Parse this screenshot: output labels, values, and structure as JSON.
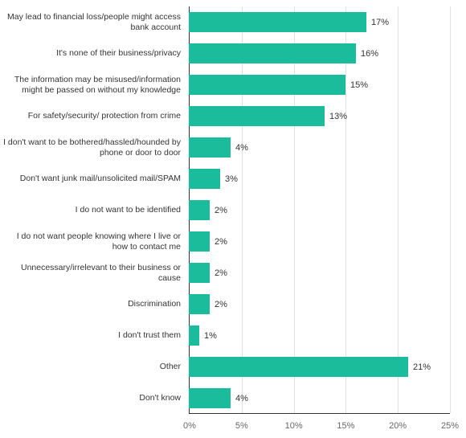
{
  "chart": {
    "type": "bar-horizontal",
    "xlim": [
      0,
      25
    ],
    "xtick_step": 5,
    "xtick_labels": [
      "0%",
      "5%",
      "10%",
      "15%",
      "20%",
      "25%"
    ],
    "bar_color": "#1abc9c",
    "axis_color": "#333333",
    "grid_color": "#e0e0e0",
    "label_color": "#333333",
    "tick_label_color": "#666666",
    "value_label_color": "#333333",
    "label_fontsize": 10.5,
    "value_fontsize": 11,
    "tick_fontsize": 11,
    "background_color": "#ffffff",
    "bar_height_ratio": 0.62,
    "items": [
      {
        "label": "May lead to financial loss/people might access bank account",
        "value": 17,
        "value_label": "17%"
      },
      {
        "label": "It's none of their business/privacy",
        "value": 16,
        "value_label": "16%"
      },
      {
        "label": "The information may be misused/information might be passed on without my knowledge",
        "value": 15,
        "value_label": "15%"
      },
      {
        "label": "For safety/security/ protection from crime",
        "value": 13,
        "value_label": "13%"
      },
      {
        "label": "I don't want to be bothered/hassled/hounded by phone or door to door",
        "value": 4,
        "value_label": "4%"
      },
      {
        "label": "Don't want junk mail/unsolicited mail/SPAM",
        "value": 3,
        "value_label": "3%"
      },
      {
        "label": "I do not want to be identified",
        "value": 2,
        "value_label": "2%"
      },
      {
        "label": "I do not want people knowing where I live or how to contact me",
        "value": 2,
        "value_label": "2%"
      },
      {
        "label": "Unnecessary/irrelevant to their business or cause",
        "value": 2,
        "value_label": "2%"
      },
      {
        "label": "Discrimination",
        "value": 2,
        "value_label": "2%"
      },
      {
        "label": "I don't trust them",
        "value": 1,
        "value_label": "1%"
      },
      {
        "label": "Other",
        "value": 21,
        "value_label": "21%"
      },
      {
        "label": "Don't know",
        "value": 4,
        "value_label": "4%"
      }
    ]
  }
}
